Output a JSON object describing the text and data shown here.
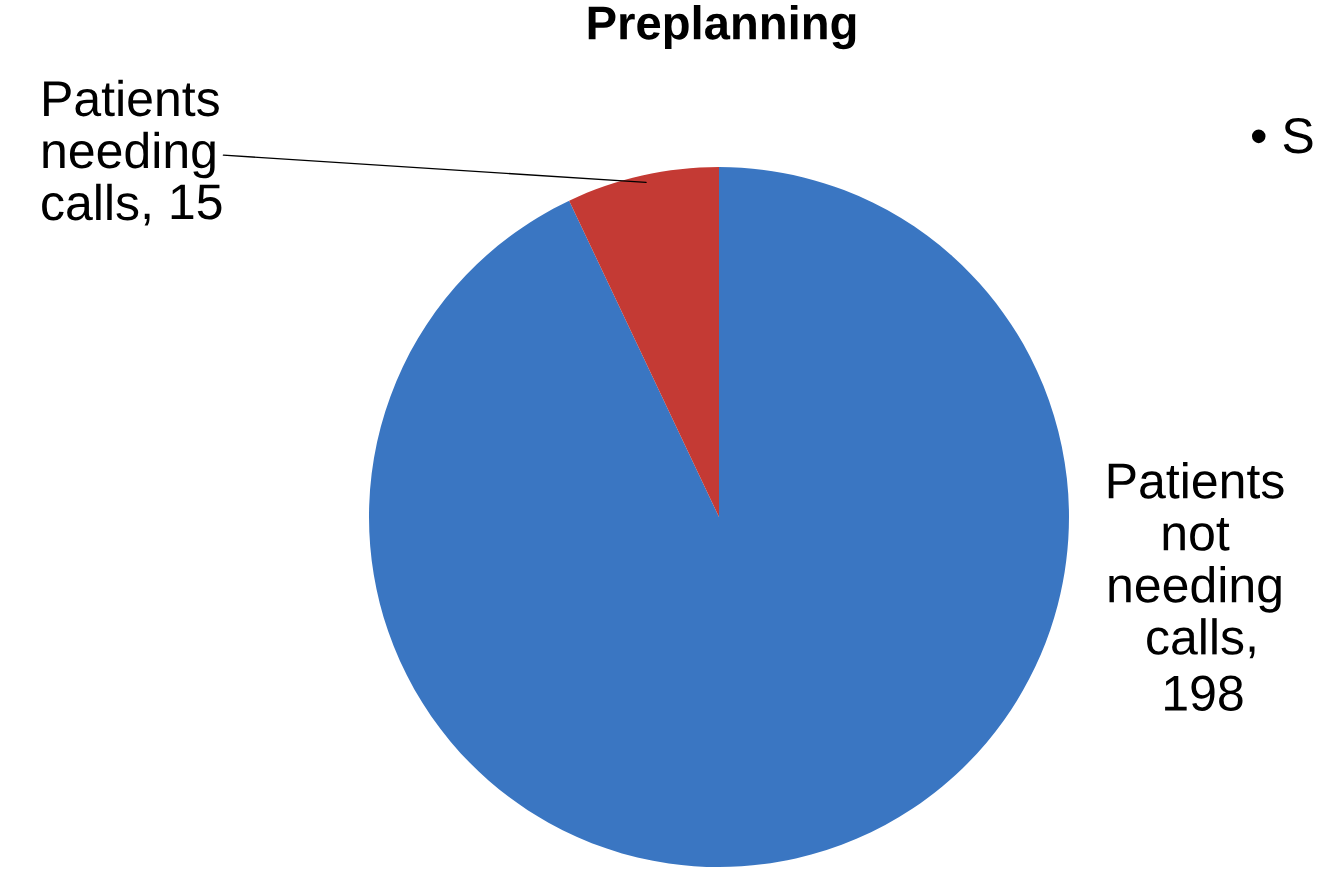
{
  "chart_data": {
    "type": "pie",
    "title": "Preplanning",
    "categories": [
      "Patients not needing calls",
      "Patients needing calls"
    ],
    "values": [
      198,
      15
    ],
    "value_labels": [
      ", 198",
      ", 15"
    ],
    "colors": [
      "#3a76c2",
      "#c43a34"
    ],
    "annotations": [
      "• S"
    ]
  }
}
